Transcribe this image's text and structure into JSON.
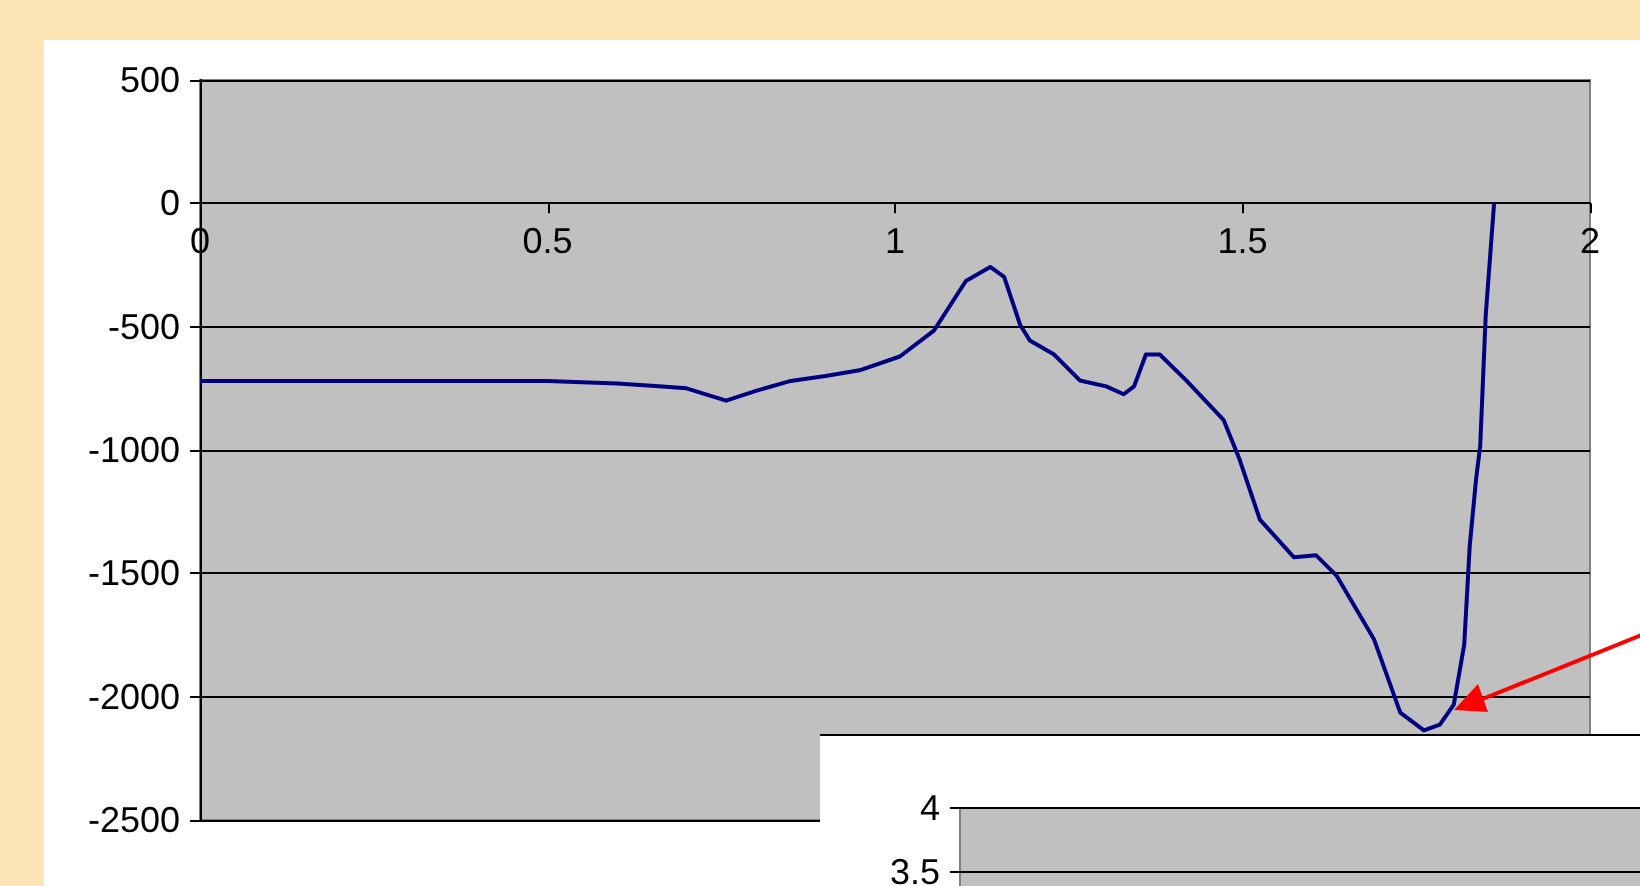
{
  "chart_data": [
    {
      "type": "line",
      "color": "#000080",
      "x": [
        0,
        0.1,
        0.2,
        0.3,
        0.4,
        0.5,
        0.6,
        0.65,
        0.7,
        0.757,
        0.8,
        0.85,
        0.9,
        0.949,
        1.007,
        1.056,
        1.102,
        1.137,
        1.157,
        1.18,
        1.194,
        1.229,
        1.266,
        1.304,
        1.329,
        1.344,
        1.361,
        1.381,
        1.419,
        1.473,
        1.496,
        1.525,
        1.574,
        1.606,
        1.635,
        1.689,
        1.727,
        1.761,
        1.784,
        1.804,
        1.819,
        1.827,
        1.836,
        1.842,
        1.85,
        1.862
      ],
      "values": [
        -720,
        -720,
        -720,
        -720,
        -720,
        -720,
        -730,
        -740,
        -750,
        -800,
        -760,
        -720,
        -700,
        -677,
        -621,
        -516,
        -315,
        -258,
        -298,
        -492,
        -556,
        -613,
        -718,
        -742,
        -774,
        -742,
        -613,
        -613,
        -718,
        -879,
        -1040,
        -1282,
        -1435,
        -1427,
        -1508,
        -1766,
        -2065,
        -2137,
        -2113,
        -2032,
        -1790,
        -1387,
        -1121,
        -984,
        -452,
        0
      ],
      "xlim": [
        0,
        2
      ],
      "xticks": [
        0,
        0.5,
        1,
        1.5,
        2
      ],
      "ylim": [
        -2500,
        500
      ],
      "yticks": [
        -2500,
        -2000,
        -1500,
        -1000,
        -500,
        0,
        500
      ],
      "grid": "y"
    },
    {
      "type": "other",
      "annotations": [
        "4",
        "3.5"
      ]
    }
  ]
}
